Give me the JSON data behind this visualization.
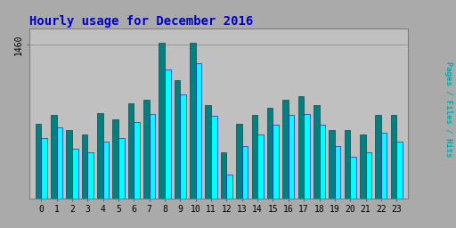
{
  "title": "Hourly usage for December 2016",
  "title_color": "#0000cc",
  "title_fontsize": 10,
  "hours": [
    0,
    1,
    2,
    3,
    4,
    5,
    6,
    7,
    8,
    9,
    10,
    11,
    12,
    13,
    14,
    15,
    16,
    17,
    18,
    19,
    20,
    21,
    22,
    23
  ],
  "green_bars": [
    1388,
    1396,
    1382,
    1378,
    1398,
    1392,
    1407,
    1410,
    1462,
    1428,
    1462,
    1405,
    1362,
    1388,
    1396,
    1403,
    1410,
    1413,
    1405,
    1382,
    1382,
    1378,
    1396,
    1396
  ],
  "cyan_bars": [
    1375,
    1385,
    1365,
    1362,
    1372,
    1375,
    1390,
    1397,
    1438,
    1415,
    1443,
    1395,
    1342,
    1368,
    1378,
    1387,
    1396,
    1397,
    1387,
    1368,
    1358,
    1362,
    1380,
    1372
  ],
  "bar_color_green": "#008080",
  "bar_color_cyan": "#00ffff",
  "bar_edge_green": "#003333",
  "bar_edge_cyan": "#0000bb",
  "background_color": "#aaaaaa",
  "plot_bg_color": "#c0c0c0",
  "right_label": "Pages / Files / Hits",
  "right_label_color": "#00aaaa",
  "ymin": 1320,
  "ymax": 1475,
  "ytick": 1460,
  "figsize": [
    5.12,
    2.56
  ],
  "dpi": 100
}
